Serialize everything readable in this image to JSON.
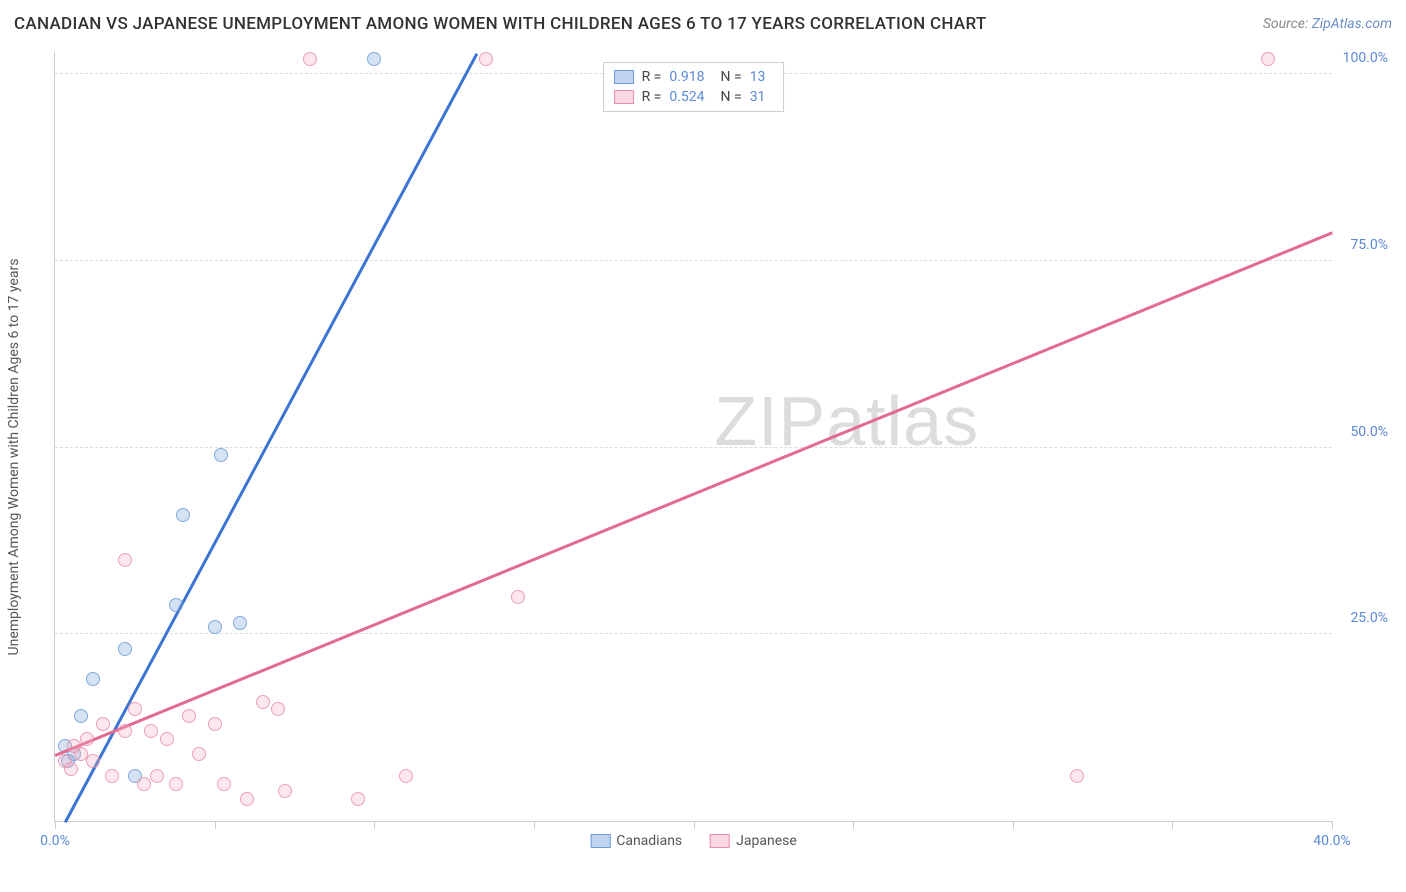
{
  "title": "CANADIAN VS JAPANESE UNEMPLOYMENT AMONG WOMEN WITH CHILDREN AGES 6 TO 17 YEARS CORRELATION CHART",
  "source_label": "Source:",
  "source_name": "ZipAtlas.com",
  "y_axis_label": "Unemployment Among Women with Children Ages 6 to 17 years",
  "watermark_a": "ZIP",
  "watermark_b": "atlas",
  "chart": {
    "type": "scatter",
    "xlim": [
      0,
      40
    ],
    "ylim": [
      0,
      103
    ],
    "x_ticks": [
      0,
      5,
      10,
      15,
      20,
      25,
      30,
      35,
      40
    ],
    "x_tick_labels": [
      "0.0%",
      "",
      "",
      "",
      "",
      "",
      "",
      "",
      "40.0%"
    ],
    "y_ticks": [
      25,
      50,
      75,
      100
    ],
    "y_tick_labels": [
      "25.0%",
      "50.0%",
      "75.0%",
      "100.0%"
    ],
    "grid_color": "#dddddd",
    "axis_color": "#cccccc",
    "background": "#ffffff",
    "series": [
      {
        "name": "Canadians",
        "color_fill": "rgba(130,170,225,0.4)",
        "color_stroke": "#6b9bd8",
        "line_color": "#3b75d1",
        "R": "0.918",
        "N": "13",
        "trend": {
          "x1": 0.3,
          "y1": 0,
          "x2": 13.2,
          "y2": 103
        },
        "points": [
          {
            "x": 0.3,
            "y": 10
          },
          {
            "x": 0.6,
            "y": 9
          },
          {
            "x": 0.4,
            "y": 8
          },
          {
            "x": 0.8,
            "y": 14
          },
          {
            "x": 1.2,
            "y": 19
          },
          {
            "x": 2.2,
            "y": 23
          },
          {
            "x": 2.5,
            "y": 6
          },
          {
            "x": 3.8,
            "y": 29
          },
          {
            "x": 5.0,
            "y": 26
          },
          {
            "x": 5.8,
            "y": 26.5
          },
          {
            "x": 4.0,
            "y": 41
          },
          {
            "x": 5.2,
            "y": 49
          },
          {
            "x": 10.0,
            "y": 102
          }
        ]
      },
      {
        "name": "Japanese",
        "color_fill": "rgba(245,175,195,0.35)",
        "color_stroke": "#e890ab",
        "line_color": "#e36b91",
        "R": "0.524",
        "N": "31",
        "trend": {
          "x1": 0,
          "y1": 9,
          "x2": 40,
          "y2": 79
        },
        "points": [
          {
            "x": 0.3,
            "y": 8
          },
          {
            "x": 0.5,
            "y": 7
          },
          {
            "x": 0.6,
            "y": 10
          },
          {
            "x": 0.8,
            "y": 9
          },
          {
            "x": 1.0,
            "y": 11
          },
          {
            "x": 1.2,
            "y": 8
          },
          {
            "x": 1.5,
            "y": 13
          },
          {
            "x": 1.8,
            "y": 6
          },
          {
            "x": 2.2,
            "y": 12
          },
          {
            "x": 2.5,
            "y": 15
          },
          {
            "x": 2.2,
            "y": 35
          },
          {
            "x": 2.8,
            "y": 5
          },
          {
            "x": 3.0,
            "y": 12
          },
          {
            "x": 3.2,
            "y": 6
          },
          {
            "x": 3.5,
            "y": 11
          },
          {
            "x": 3.8,
            "y": 5
          },
          {
            "x": 4.2,
            "y": 14
          },
          {
            "x": 4.5,
            "y": 9
          },
          {
            "x": 5.0,
            "y": 13
          },
          {
            "x": 5.3,
            "y": 5
          },
          {
            "x": 6.0,
            "y": 3
          },
          {
            "x": 6.5,
            "y": 16
          },
          {
            "x": 7.0,
            "y": 15
          },
          {
            "x": 7.2,
            "y": 4
          },
          {
            "x": 8.0,
            "y": 102
          },
          {
            "x": 9.5,
            "y": 3
          },
          {
            "x": 11.0,
            "y": 6
          },
          {
            "x": 13.5,
            "y": 102
          },
          {
            "x": 14.5,
            "y": 30
          },
          {
            "x": 32.0,
            "y": 6
          },
          {
            "x": 38.0,
            "y": 102
          }
        ]
      }
    ]
  },
  "legend_top": {
    "r_label": "R =",
    "n_label": "N ="
  },
  "legend_bottom": [
    {
      "label": "Canadians",
      "class": "blue"
    },
    {
      "label": "Japanese",
      "class": "pink"
    }
  ]
}
